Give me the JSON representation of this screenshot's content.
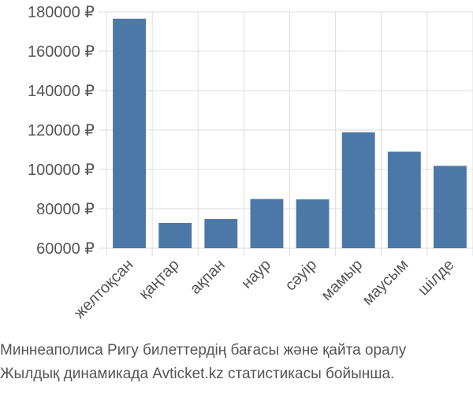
{
  "chart_data": {
    "type": "bar",
    "categories": [
      "желтоқсан",
      "қаңтар",
      "ақпан",
      "наур",
      "сәуір",
      "мамыр",
      "маусым",
      "шілде"
    ],
    "values": [
      176500,
      72800,
      74800,
      85000,
      84800,
      118800,
      109000,
      101800
    ],
    "ylim": [
      60000,
      180000
    ],
    "yticks": [
      60000,
      80000,
      100000,
      120000,
      140000,
      160000,
      180000
    ],
    "ytick_labels": [
      "60000 ₽",
      "80000 ₽",
      "100000 ₽",
      "120000 ₽",
      "140000 ₽",
      "160000 ₽",
      "180000 ₽"
    ],
    "grid": true,
    "bar_color": "#4c78a8"
  },
  "caption": {
    "line1": "Миннеаполиса Ригу билеттердің бағасы және қайта оралу",
    "line2": "Жылдық динамикада Avticket.kz статистикасы бойынша."
  }
}
